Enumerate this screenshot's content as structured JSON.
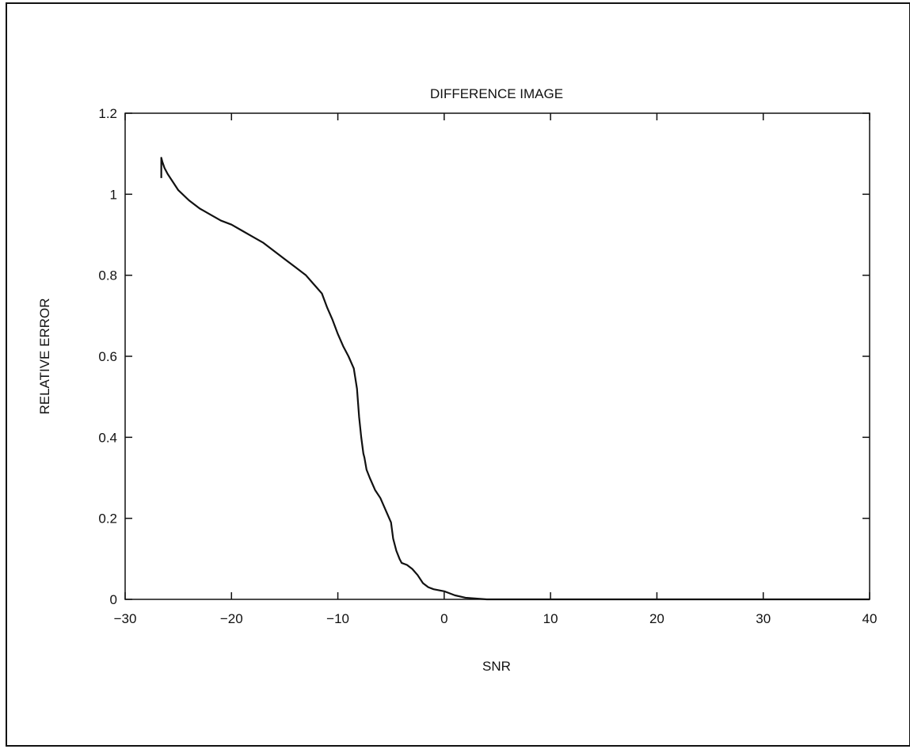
{
  "chart_data": {
    "type": "line",
    "title": "DIFFERENCE IMAGE",
    "xlabel": "SNR",
    "ylabel": "RELATIVE ERROR",
    "xlim": [
      -30,
      40
    ],
    "ylim": [
      0,
      1.2
    ],
    "x_ticks": [
      -30,
      -20,
      -10,
      0,
      10,
      20,
      30,
      40
    ],
    "y_ticks": [
      0,
      0.2,
      0.4,
      0.6,
      0.8,
      1,
      1.2
    ],
    "x_tick_labels": [
      "−30",
      "−20",
      "−10",
      "0",
      "10",
      "20",
      "30",
      "40"
    ],
    "y_tick_labels": [
      "0",
      "0.2",
      "0.4",
      "0.6",
      "0.8",
      "1",
      "1.2"
    ],
    "grid": false,
    "line_color": "#111111",
    "series": [
      {
        "x": [
          -26.6,
          -26.6,
          -26.5,
          -26.3,
          -26.0,
          -25.5,
          -25.0,
          -24.0,
          -23.0,
          -22.0,
          -21.0,
          -20.0,
          -19.0,
          -18.0,
          -17.0,
          -16.0,
          -15.0,
          -14.0,
          -13.0,
          -12.5,
          -12.0,
          -11.5,
          -11.0,
          -10.5,
          -10.0,
          -9.5,
          -9.0,
          -8.5,
          -8.2,
          -8.0,
          -7.8,
          -7.6,
          -7.5,
          -7.3,
          -7.0,
          -6.5,
          -6.0,
          -5.5,
          -5.0,
          -4.8,
          -4.5,
          -4.2,
          -4.0,
          -3.5,
          -3.0,
          -2.5,
          -2.0,
          -1.5,
          -1.0,
          0.0,
          1.0,
          2.0,
          3.0,
          4.0,
          6.0,
          10.0,
          20.0,
          30.0,
          40.0
        ],
        "y": [
          1.04,
          1.09,
          1.08,
          1.065,
          1.05,
          1.03,
          1.01,
          0.985,
          0.965,
          0.95,
          0.935,
          0.925,
          0.91,
          0.895,
          0.88,
          0.86,
          0.84,
          0.82,
          0.8,
          0.785,
          0.77,
          0.755,
          0.72,
          0.69,
          0.655,
          0.625,
          0.6,
          0.57,
          0.52,
          0.45,
          0.4,
          0.36,
          0.35,
          0.32,
          0.3,
          0.27,
          0.25,
          0.22,
          0.19,
          0.15,
          0.12,
          0.1,
          0.09,
          0.085,
          0.075,
          0.06,
          0.04,
          0.03,
          0.025,
          0.02,
          0.01,
          0.004,
          0.002,
          0.0,
          0.0,
          0.0,
          0.0,
          0.0,
          0.0
        ]
      }
    ]
  }
}
